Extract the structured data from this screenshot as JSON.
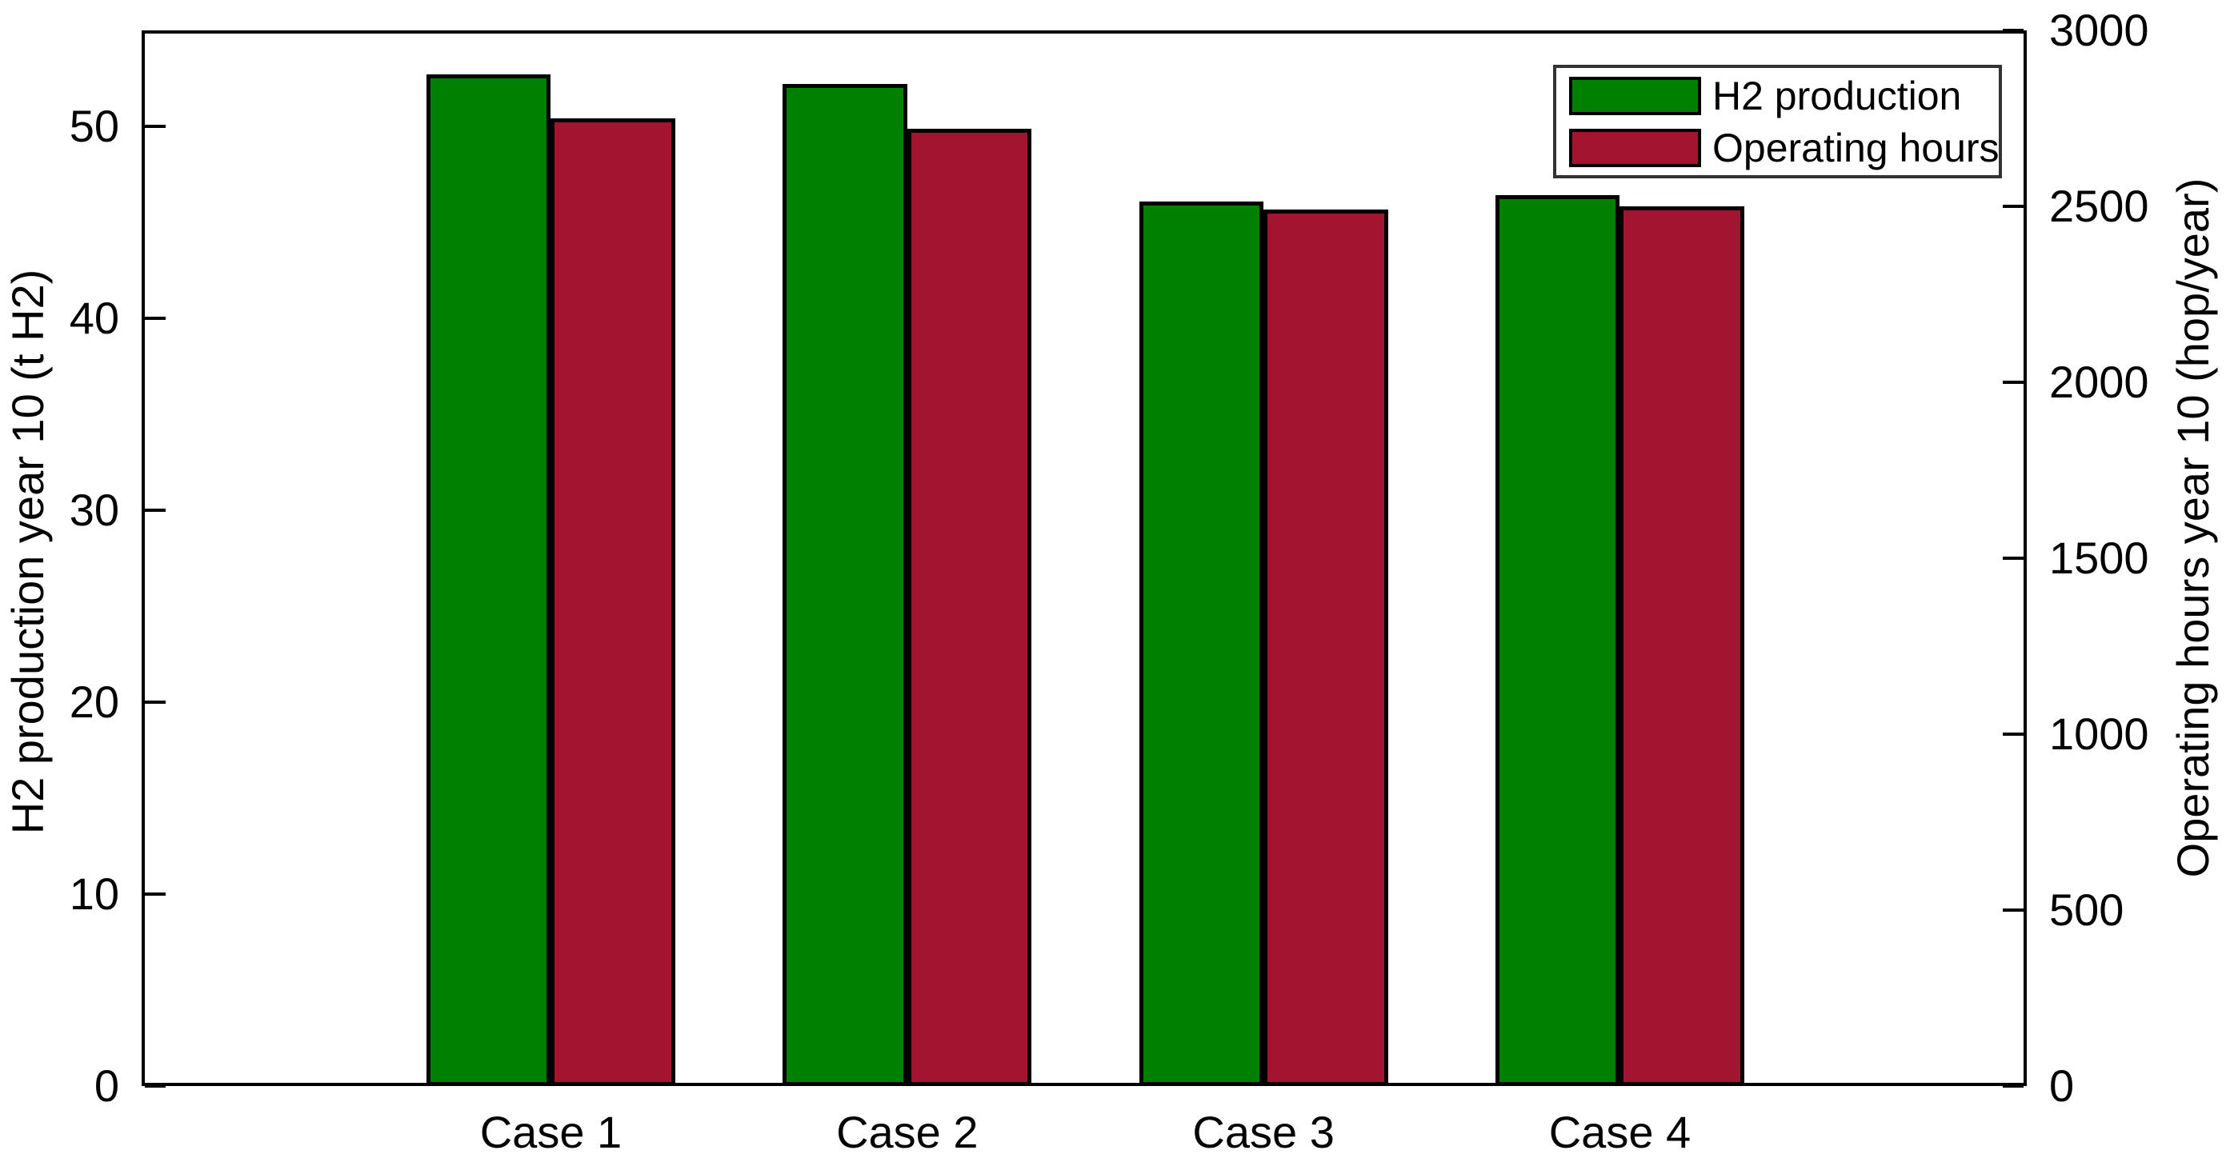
{
  "figure": {
    "background": "#ffffff",
    "axis_color": "#000000"
  },
  "chart_data": {
    "type": "bar",
    "categories": [
      "Case 1",
      "Case 2",
      "Case 3",
      "Case 4"
    ],
    "series": [
      {
        "name": "H2 production",
        "axis": "left",
        "color": "#008000",
        "values": [
          52.7,
          52.2,
          46.1,
          46.4
        ]
      },
      {
        "name": "Operating hours",
        "axis": "right",
        "color": "#A2142F",
        "values": [
          2750,
          2720,
          2490,
          2500
        ]
      }
    ],
    "left_axis": {
      "label": "H2 production year 10 (t H2)",
      "ticks": [
        0,
        10,
        20,
        30,
        40,
        50
      ],
      "range": [
        0,
        55
      ]
    },
    "right_axis": {
      "label": "Operating hours year 10 (hop/year)",
      "ticks": [
        0,
        500,
        1000,
        1500,
        2000,
        2500,
        3000
      ],
      "range": [
        0,
        3000
      ]
    },
    "legend": {
      "position": "top-right"
    },
    "grid": false
  }
}
